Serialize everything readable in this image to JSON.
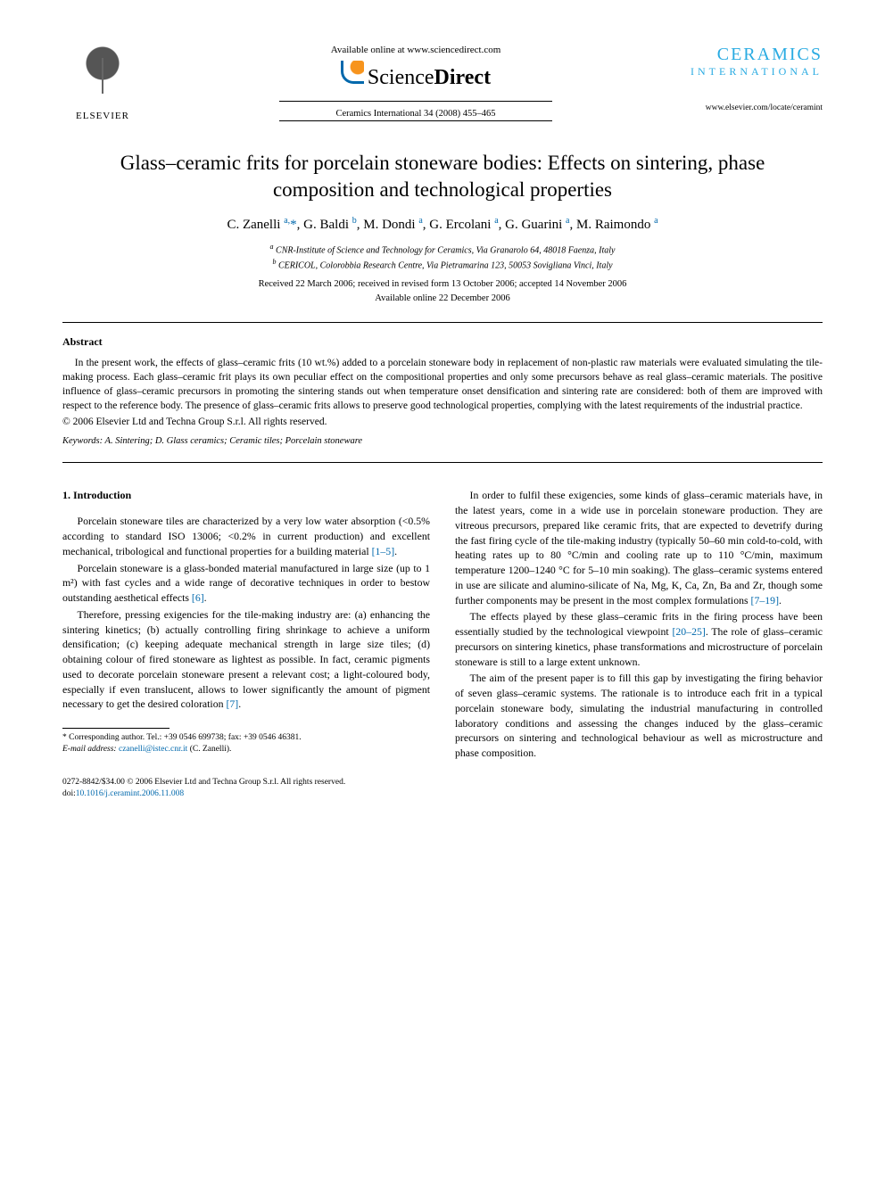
{
  "header": {
    "publisher_label": "ELSEVIER",
    "available_online": "Available online at www.sciencedirect.com",
    "sd_text_1": "Science",
    "sd_text_2": "Direct",
    "citation": "Ceramics International 34 (2008) 455–465",
    "journal_title": "CERAMICS",
    "journal_sub": "INTERNATIONAL",
    "journal_url": "www.elsevier.com/locate/ceramint"
  },
  "title": "Glass–ceramic frits for porcelain stoneware bodies: Effects on sintering, phase composition and technological properties",
  "authors_html": "C. Zanelli <sup class='link'>a,</sup><span class='link'>*</span>, G. Baldi <sup class='link'>b</sup>, M. Dondi <sup class='link'>a</sup>, G. Ercolani <sup class='link'>a</sup>, G. Guarini <sup class='link'>a</sup>, M. Raimondo <sup class='link'>a</sup>",
  "affiliations": [
    "CNR-Institute of Science and Technology for Ceramics, Via Granarolo 64, 48018 Faenza, Italy",
    "CERICOL, Colorobbia Research Centre, Via Pietramarina 123, 50053 Sovigliana Vinci, Italy"
  ],
  "dates_line1": "Received 22 March 2006; received in revised form 13 October 2006; accepted 14 November 2006",
  "dates_line2": "Available online 22 December 2006",
  "abstract": {
    "heading": "Abstract",
    "body": "In the present work, the effects of glass–ceramic frits (10 wt.%) added to a porcelain stoneware body in replacement of non-plastic raw materials were evaluated simulating the tile-making process. Each glass–ceramic frit plays its own peculiar effect on the compositional properties and only some precursors behave as real glass–ceramic materials. The positive influence of glass–ceramic precursors in promoting the sintering stands out when temperature onset densification and sintering rate are considered: both of them are improved with respect to the reference body. The presence of glass–ceramic frits allows to preserve good technological properties, complying with the latest requirements of the industrial practice.",
    "copyright": "© 2006 Elsevier Ltd and Techna Group S.r.l. All rights reserved."
  },
  "keywords_label": "Keywords:",
  "keywords": "A. Sintering; D. Glass ceramics; Ceramic tiles; Porcelain stoneware",
  "section1": {
    "heading": "1.  Introduction",
    "p1": "Porcelain stoneware tiles are characterized by a very low water absorption (<0.5% according to standard ISO 13006; <0.2% in current production) and excellent mechanical, tribological and functional properties for a building material ",
    "ref1": "[1–5]",
    "p2": "Porcelain stoneware is a glass-bonded material manufactured in large size (up to 1 m²) with fast cycles and a wide range of decorative techniques in order to bestow outstanding aesthetical effects ",
    "ref2": "[6]",
    "p3": "Therefore, pressing exigencies for the tile-making industry are: (a) enhancing the sintering kinetics; (b) actually controlling firing shrinkage to achieve a uniform densification; (c) keeping adequate mechanical strength in large size tiles; (d) obtaining colour of fired stoneware as lightest as possible. In fact, ceramic pigments used to decorate porcelain stoneware present a relevant cost; a light-coloured body, especially if even translucent, allows to lower significantly the amount of pigment necessary to get the desired coloration ",
    "ref3": "[7]",
    "p4": "In order to fulfil these exigencies, some kinds of glass–ceramic materials have, in the latest years, come in a wide use in porcelain stoneware production. They are vitreous precursors, prepared like ceramic frits, that are expected to devetrify during the fast firing cycle of the tile-making industry (typically 50–60 min cold-to-cold, with heating rates up to 80 °C/min and cooling rate up to 110 °C/min, maximum temperature 1200–1240 °C for 5–10 min soaking). The glass–ceramic systems entered in use are silicate and alumino-silicate of Na, Mg, K, Ca, Zn, Ba and Zr, though some further components may be present in the most complex formulations ",
    "ref4": "[7–19]",
    "p5": "The effects played by these glass–ceramic frits in the firing process have been essentially studied by the technological viewpoint ",
    "ref5": "[20–25]",
    "p5b": ". The role of glass–ceramic precursors on sintering kinetics, phase transformations and microstructure of porcelain stoneware is still to a large extent unknown.",
    "p6": "The aim of the present paper is to fill this gap by investigating the firing behavior of seven glass–ceramic systems. The rationale is to introduce each frit in a typical porcelain stoneware body, simulating the industrial manufacturing in controlled laboratory conditions and assessing the changes induced by the glass–ceramic precursors on sintering and technological behaviour as well as microstructure and phase composition."
  },
  "footnote": {
    "corr": "* Corresponding author. Tel.: +39 0546 699738; fax: +39 0546 46381.",
    "email_label": "E-mail address:",
    "email": "czanelli@istec.cnr.it",
    "email_author": "(C. Zanelli)."
  },
  "bottom": {
    "issn": "0272-8842/$34.00 © 2006 Elsevier Ltd and Techna Group S.r.l. All rights reserved.",
    "doi_label": "doi:",
    "doi": "10.1016/j.ceramint.2006.11.008"
  }
}
